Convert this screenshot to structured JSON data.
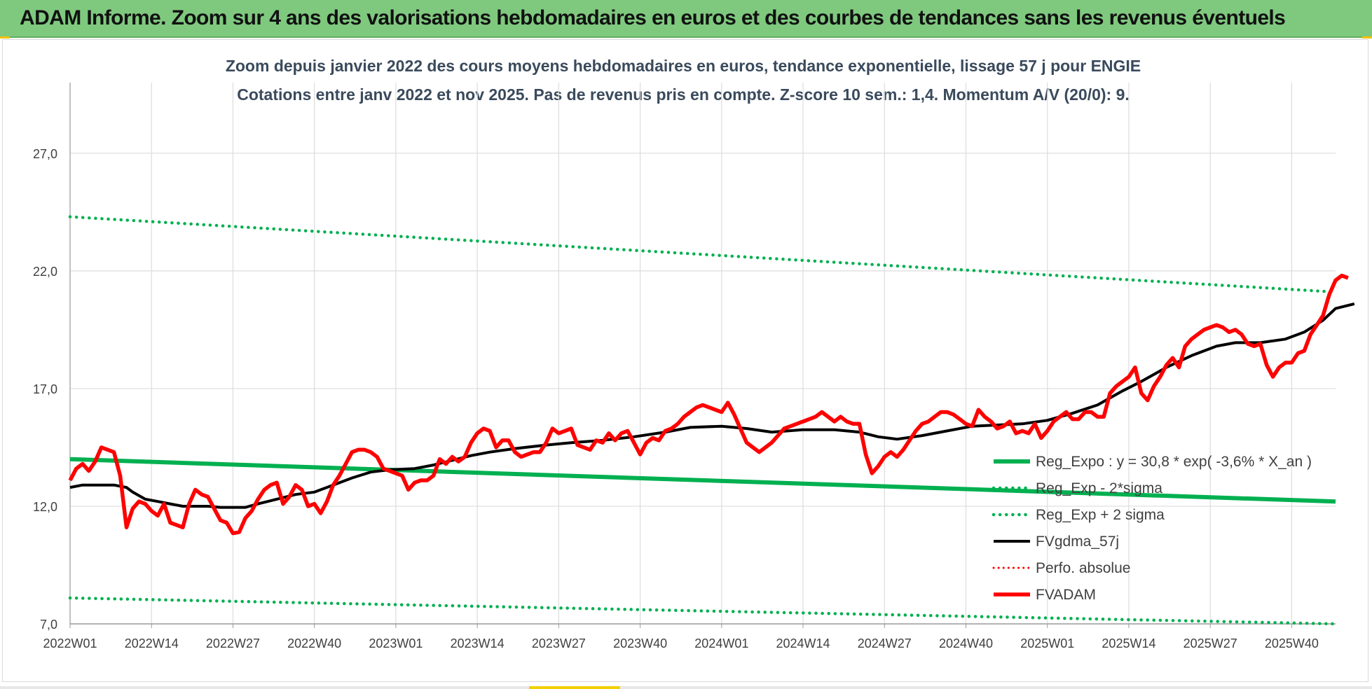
{
  "banner": {
    "title": "ADAM Informe. Zoom sur 4 ans des valorisations hebdomadaires en euros et des courbes de tendances sans les revenus éventuels"
  },
  "chart_data": {
    "type": "line",
    "title": "Zoom depuis janvier 2022 des cours moyens hebdomadaires en euros, tendance exponentielle, lissage 57 j pour ENGIE",
    "subtitle": "Cotations entre janv 2022 et nov 2025. Pas de revenus pris en compte. Z-score 10 sem.: 1,4. Momentum A/V (20/0): 9.",
    "xlabel": "",
    "ylabel": "",
    "ylim": [
      7,
      30
    ],
    "yticks": [
      7,
      12,
      17,
      22,
      27
    ],
    "ytick_labels": [
      "7,0",
      "12,0",
      "17,0",
      "22,0",
      "27,0"
    ],
    "x_range": [
      0,
      202
    ],
    "x_ticks": [
      {
        "week": 0,
        "label": "2022W01"
      },
      {
        "week": 13,
        "label": "2022W14"
      },
      {
        "week": 26,
        "label": "2022W27"
      },
      {
        "week": 39,
        "label": "2022W40"
      },
      {
        "week": 52,
        "label": "2023W01"
      },
      {
        "week": 65,
        "label": "2023W14"
      },
      {
        "week": 78,
        "label": "2023W27"
      },
      {
        "week": 91,
        "label": "2023W40"
      },
      {
        "week": 104,
        "label": "2024W01"
      },
      {
        "week": 117,
        "label": "2024W14"
      },
      {
        "week": 130,
        "label": "2024W27"
      },
      {
        "week": 143,
        "label": "2024W40"
      },
      {
        "week": 156,
        "label": "2025W01"
      },
      {
        "week": 169,
        "label": "2025W14"
      },
      {
        "week": 182,
        "label": "2025W27"
      },
      {
        "week": 195,
        "label": "2025W40"
      }
    ],
    "grid": true,
    "legend_position": "right",
    "colors": {
      "regression": "#00b050",
      "fvadam": "#ff0000",
      "fvgdma": "#000000",
      "perfo": "#ff0000"
    },
    "series": [
      {
        "name": "Reg_Expo : y = 30,8 * exp( -3,6% *  X_an )",
        "style": "solid-green",
        "points": [
          [
            0,
            14.0
          ],
          [
            202,
            12.2
          ]
        ]
      },
      {
        "name": "Reg_Exp - 2*sigma",
        "style": "dotted-green",
        "points": [
          [
            0,
            8.1
          ],
          [
            202,
            7.0
          ]
        ]
      },
      {
        "name": "Reg_Exp + 2 sigma",
        "style": "dotted-green",
        "points": [
          [
            0,
            24.3
          ],
          [
            202,
            21.1
          ]
        ]
      },
      {
        "name": "FVgdma_57j",
        "style": "solid-black",
        "points": [
          [
            0,
            12.8
          ],
          [
            2,
            12.9
          ],
          [
            7,
            12.9
          ],
          [
            9,
            12.8
          ],
          [
            10,
            12.6
          ],
          [
            12,
            12.3
          ],
          [
            14,
            12.2
          ],
          [
            16,
            12.1
          ],
          [
            18,
            12.0
          ],
          [
            20,
            12.0
          ],
          [
            22,
            12.0
          ],
          [
            24,
            11.95
          ],
          [
            28,
            11.95
          ],
          [
            30,
            12.1
          ],
          [
            33,
            12.3
          ],
          [
            36,
            12.5
          ],
          [
            39,
            12.6
          ],
          [
            42,
            12.9
          ],
          [
            45,
            13.2
          ],
          [
            48,
            13.45
          ],
          [
            51,
            13.55
          ],
          [
            55,
            13.6
          ],
          [
            58,
            13.75
          ],
          [
            61,
            13.95
          ],
          [
            64,
            14.15
          ],
          [
            67,
            14.3
          ],
          [
            71,
            14.45
          ],
          [
            76,
            14.6
          ],
          [
            80,
            14.7
          ],
          [
            85,
            14.8
          ],
          [
            90,
            14.95
          ],
          [
            95,
            15.15
          ],
          [
            99,
            15.35
          ],
          [
            104,
            15.4
          ],
          [
            108,
            15.3
          ],
          [
            112,
            15.15
          ],
          [
            117,
            15.25
          ],
          [
            122,
            15.25
          ],
          [
            126,
            15.15
          ],
          [
            129,
            14.95
          ],
          [
            132,
            14.85
          ],
          [
            136,
            15.0
          ],
          [
            140,
            15.2
          ],
          [
            144,
            15.4
          ],
          [
            148,
            15.45
          ],
          [
            152,
            15.5
          ],
          [
            156,
            15.65
          ],
          [
            160,
            15.95
          ],
          [
            164,
            16.3
          ],
          [
            168,
            16.9
          ],
          [
            171,
            17.3
          ],
          [
            175,
            17.9
          ],
          [
            179,
            18.4
          ],
          [
            183,
            18.8
          ],
          [
            186,
            18.95
          ],
          [
            190,
            18.95
          ],
          [
            194,
            19.1
          ],
          [
            197,
            19.4
          ],
          [
            200,
            19.9
          ],
          [
            202,
            20.4
          ],
          [
            205,
            20.6
          ]
        ]
      },
      {
        "name": "Perfo. absolue",
        "style": "dotted-red",
        "points": []
      },
      {
        "name": "FVADAM",
        "style": "solid-red",
        "points": [
          [
            0,
            13.1
          ],
          [
            1,
            13.6
          ],
          [
            2,
            13.8
          ],
          [
            3,
            13.5
          ],
          [
            4,
            13.9
          ],
          [
            5,
            14.5
          ],
          [
            6,
            14.4
          ],
          [
            7,
            14.3
          ],
          [
            8,
            13.3
          ],
          [
            9,
            11.1
          ],
          [
            10,
            11.9
          ],
          [
            11,
            12.2
          ],
          [
            12,
            12.1
          ],
          [
            13,
            11.8
          ],
          [
            14,
            11.6
          ],
          [
            15,
            12.1
          ],
          [
            16,
            11.3
          ],
          [
            17,
            11.2
          ],
          [
            18,
            11.1
          ],
          [
            19,
            12.1
          ],
          [
            20,
            12.7
          ],
          [
            21,
            12.5
          ],
          [
            22,
            12.4
          ],
          [
            23,
            11.9
          ],
          [
            24,
            11.4
          ],
          [
            25,
            11.3
          ],
          [
            26,
            10.85
          ],
          [
            27,
            10.9
          ],
          [
            28,
            11.5
          ],
          [
            29,
            11.8
          ],
          [
            30,
            12.3
          ],
          [
            31,
            12.7
          ],
          [
            32,
            12.9
          ],
          [
            33,
            13.0
          ],
          [
            34,
            12.1
          ],
          [
            35,
            12.4
          ],
          [
            36,
            12.9
          ],
          [
            37,
            12.7
          ],
          [
            38,
            12.0
          ],
          [
            39,
            12.1
          ],
          [
            40,
            11.7
          ],
          [
            41,
            12.2
          ],
          [
            42,
            12.9
          ],
          [
            43,
            13.3
          ],
          [
            44,
            13.8
          ],
          [
            45,
            14.3
          ],
          [
            46,
            14.4
          ],
          [
            47,
            14.4
          ],
          [
            48,
            14.3
          ],
          [
            49,
            14.1
          ],
          [
            50,
            13.6
          ],
          [
            51,
            13.5
          ],
          [
            52,
            13.4
          ],
          [
            53,
            13.3
          ],
          [
            54,
            12.7
          ],
          [
            55,
            13.0
          ],
          [
            56,
            13.1
          ],
          [
            57,
            13.1
          ],
          [
            58,
            13.3
          ],
          [
            59,
            14.0
          ],
          [
            60,
            13.8
          ],
          [
            61,
            14.1
          ],
          [
            62,
            13.9
          ],
          [
            63,
            14.1
          ],
          [
            64,
            14.7
          ],
          [
            65,
            15.1
          ],
          [
            66,
            15.3
          ],
          [
            67,
            15.2
          ],
          [
            68,
            14.5
          ],
          [
            69,
            14.8
          ],
          [
            70,
            14.8
          ],
          [
            71,
            14.3
          ],
          [
            72,
            14.1
          ],
          [
            73,
            14.2
          ],
          [
            74,
            14.3
          ],
          [
            75,
            14.3
          ],
          [
            76,
            14.7
          ],
          [
            77,
            15.3
          ],
          [
            78,
            15.1
          ],
          [
            79,
            15.2
          ],
          [
            80,
            15.3
          ],
          [
            81,
            14.6
          ],
          [
            82,
            14.5
          ],
          [
            83,
            14.4
          ],
          [
            84,
            14.8
          ],
          [
            85,
            14.7
          ],
          [
            86,
            15.1
          ],
          [
            87,
            14.8
          ],
          [
            88,
            15.1
          ],
          [
            89,
            15.2
          ],
          [
            90,
            14.7
          ],
          [
            91,
            14.2
          ],
          [
            92,
            14.7
          ],
          [
            93,
            14.9
          ],
          [
            94,
            14.8
          ],
          [
            95,
            15.2
          ],
          [
            96,
            15.3
          ],
          [
            97,
            15.5
          ],
          [
            98,
            15.8
          ],
          [
            99,
            16.0
          ],
          [
            100,
            16.2
          ],
          [
            101,
            16.3
          ],
          [
            102,
            16.2
          ],
          [
            103,
            16.1
          ],
          [
            104,
            16.0
          ],
          [
            105,
            16.4
          ],
          [
            106,
            15.9
          ],
          [
            107,
            15.3
          ],
          [
            108,
            14.7
          ],
          [
            109,
            14.5
          ],
          [
            110,
            14.3
          ],
          [
            111,
            14.5
          ],
          [
            112,
            14.7
          ],
          [
            113,
            15.0
          ],
          [
            114,
            15.3
          ],
          [
            115,
            15.4
          ],
          [
            116,
            15.5
          ],
          [
            117,
            15.6
          ],
          [
            118,
            15.7
          ],
          [
            119,
            15.8
          ],
          [
            120,
            16.0
          ],
          [
            121,
            15.8
          ],
          [
            122,
            15.6
          ],
          [
            123,
            15.8
          ],
          [
            124,
            15.6
          ],
          [
            125,
            15.5
          ],
          [
            126,
            15.5
          ],
          [
            127,
            14.2
          ],
          [
            128,
            13.4
          ],
          [
            129,
            13.7
          ],
          [
            130,
            14.1
          ],
          [
            131,
            14.3
          ],
          [
            132,
            14.1
          ],
          [
            133,
            14.4
          ],
          [
            134,
            14.8
          ],
          [
            135,
            15.2
          ],
          [
            136,
            15.5
          ],
          [
            137,
            15.6
          ],
          [
            138,
            15.8
          ],
          [
            139,
            16.0
          ],
          [
            140,
            16.0
          ],
          [
            141,
            15.9
          ],
          [
            142,
            15.7
          ],
          [
            143,
            15.5
          ],
          [
            144,
            15.4
          ],
          [
            145,
            16.1
          ],
          [
            146,
            15.8
          ],
          [
            147,
            15.6
          ],
          [
            148,
            15.3
          ],
          [
            149,
            15.4
          ],
          [
            150,
            15.6
          ],
          [
            151,
            15.1
          ],
          [
            152,
            15.2
          ],
          [
            153,
            15.1
          ],
          [
            154,
            15.5
          ],
          [
            155,
            14.9
          ],
          [
            156,
            15.2
          ],
          [
            157,
            15.6
          ],
          [
            158,
            15.8
          ],
          [
            159,
            16.0
          ],
          [
            160,
            15.7
          ],
          [
            161,
            15.7
          ],
          [
            162,
            16.0
          ],
          [
            163,
            16.0
          ],
          [
            164,
            15.8
          ],
          [
            165,
            15.8
          ],
          [
            166,
            16.8
          ],
          [
            167,
            17.1
          ],
          [
            168,
            17.3
          ],
          [
            169,
            17.5
          ],
          [
            170,
            17.9
          ],
          [
            171,
            16.8
          ],
          [
            172,
            16.5
          ],
          [
            173,
            17.1
          ],
          [
            174,
            17.5
          ],
          [
            175,
            18.0
          ],
          [
            176,
            18.3
          ],
          [
            177,
            17.9
          ],
          [
            178,
            18.8
          ],
          [
            179,
            19.1
          ],
          [
            180,
            19.3
          ],
          [
            181,
            19.5
          ],
          [
            182,
            19.6
          ],
          [
            183,
            19.7
          ],
          [
            184,
            19.6
          ],
          [
            185,
            19.4
          ],
          [
            186,
            19.5
          ],
          [
            187,
            19.3
          ],
          [
            188,
            18.9
          ],
          [
            189,
            18.8
          ],
          [
            190,
            18.9
          ],
          [
            191,
            18.0
          ],
          [
            192,
            17.5
          ],
          [
            193,
            17.9
          ],
          [
            194,
            18.1
          ],
          [
            195,
            18.1
          ],
          [
            196,
            18.5
          ],
          [
            197,
            18.6
          ],
          [
            198,
            19.3
          ],
          [
            199,
            19.7
          ],
          [
            200,
            20.1
          ],
          [
            201,
            21.0
          ],
          [
            202,
            21.6
          ],
          [
            203,
            21.8
          ],
          [
            204,
            21.7
          ]
        ]
      }
    ]
  }
}
